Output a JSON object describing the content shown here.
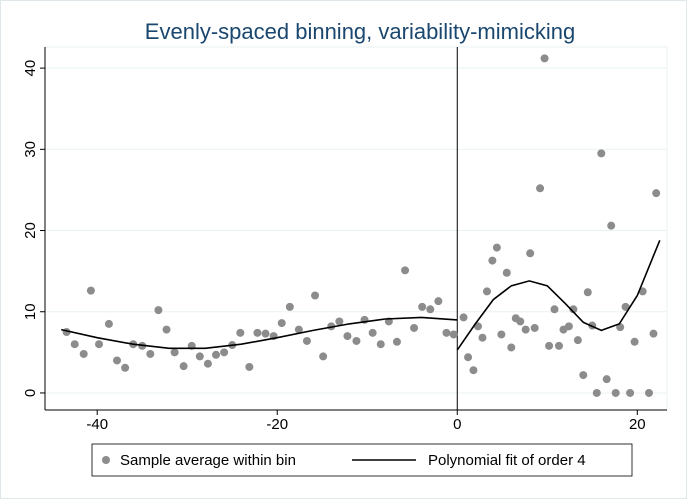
{
  "chart_data": {
    "type": "scatter",
    "title": "Evenly-spaced binning, variability-mimicking",
    "xlim": [
      -45.8,
      23.3
    ],
    "ylim": [
      -2.1,
      42.6
    ],
    "xticks": [
      -40,
      -20,
      0,
      20
    ],
    "yticks": [
      0,
      10,
      20,
      30,
      40
    ],
    "grid": true,
    "xline": 0,
    "legend": "bottom",
    "series": [
      {
        "name": "Sample average within bin",
        "mode": "markers",
        "color": "#8c8c8c",
        "x": [
          -43.4,
          -42.5,
          -41.5,
          -40.7,
          -39.8,
          -38.7,
          -37.8,
          -36.9,
          -36.0,
          -35.0,
          -34.1,
          -33.2,
          -32.3,
          -31.4,
          -30.4,
          -29.5,
          -28.6,
          -27.7,
          -26.8,
          -25.9,
          -25.0,
          -24.1,
          -23.1,
          -22.2,
          -21.3,
          -20.4,
          -19.5,
          -18.6,
          -17.6,
          -16.7,
          -15.8,
          -14.9,
          -14.0,
          -13.1,
          -12.2,
          -11.2,
          -10.3,
          -9.4,
          -8.5,
          -7.6,
          -6.7,
          -5.8,
          -4.8,
          -3.9,
          -3.0,
          -2.1,
          -1.2,
          -0.4,
          0.7,
          1.2,
          1.8,
          2.3,
          2.8,
          3.3,
          3.9,
          4.4,
          4.9,
          5.5,
          6.0,
          6.5,
          7.0,
          7.6,
          8.1,
          8.6,
          9.2,
          9.7,
          10.2,
          10.8,
          11.3,
          11.8,
          12.4,
          12.9,
          13.4,
          14.0,
          14.5,
          15.0,
          15.5,
          16.0,
          16.6,
          17.1,
          17.6,
          18.1,
          18.7,
          19.2,
          19.7,
          20.6,
          21.3,
          21.8,
          22.1
        ],
        "values": [
          7.5,
          6.0,
          4.8,
          12.6,
          6.0,
          8.5,
          4.0,
          3.1,
          6.0,
          5.8,
          4.8,
          10.2,
          7.8,
          5.0,
          3.3,
          5.8,
          4.5,
          3.6,
          4.7,
          5.0,
          5.9,
          7.4,
          3.2,
          7.4,
          7.3,
          7.0,
          8.6,
          10.6,
          7.8,
          6.4,
          12.0,
          4.5,
          8.2,
          8.8,
          7.0,
          6.4,
          9.0,
          7.4,
          6.0,
          8.8,
          6.3,
          15.1,
          8.0,
          10.6,
          10.3,
          11.3,
          7.4,
          7.2,
          9.3,
          4.4,
          2.8,
          8.2,
          6.8,
          12.5,
          16.3,
          17.9,
          7.2,
          14.8,
          5.6,
          9.2,
          8.8,
          7.8,
          17.2,
          8.0,
          25.2,
          41.2,
          5.8,
          10.3,
          5.8,
          7.8,
          8.2,
          10.3,
          6.5,
          2.2,
          12.4,
          8.3,
          0,
          29.5,
          1.7,
          20.6,
          0,
          8.1,
          10.6,
          0,
          6.3,
          12.5,
          0,
          7.3,
          24.6
        ]
      },
      {
        "name": "Polynomial fit of order 4",
        "mode": "line",
        "color": "#000000",
        "x": [
          -44,
          -40,
          -36,
          -32,
          -28,
          -24,
          -20,
          -16,
          -12,
          -8,
          -4,
          0,
          null,
          0,
          2,
          4,
          6,
          8,
          10,
          12,
          14,
          16,
          18,
          20,
          22.5
        ],
        "values": [
          7.8,
          6.8,
          6.0,
          5.5,
          5.5,
          6.0,
          6.8,
          7.7,
          8.5,
          9.1,
          9.3,
          9.0,
          null,
          5.3,
          8.5,
          11.5,
          13.2,
          13.8,
          13.2,
          11.0,
          8.7,
          7.7,
          8.5,
          12.0,
          18.8
        ]
      }
    ]
  }
}
